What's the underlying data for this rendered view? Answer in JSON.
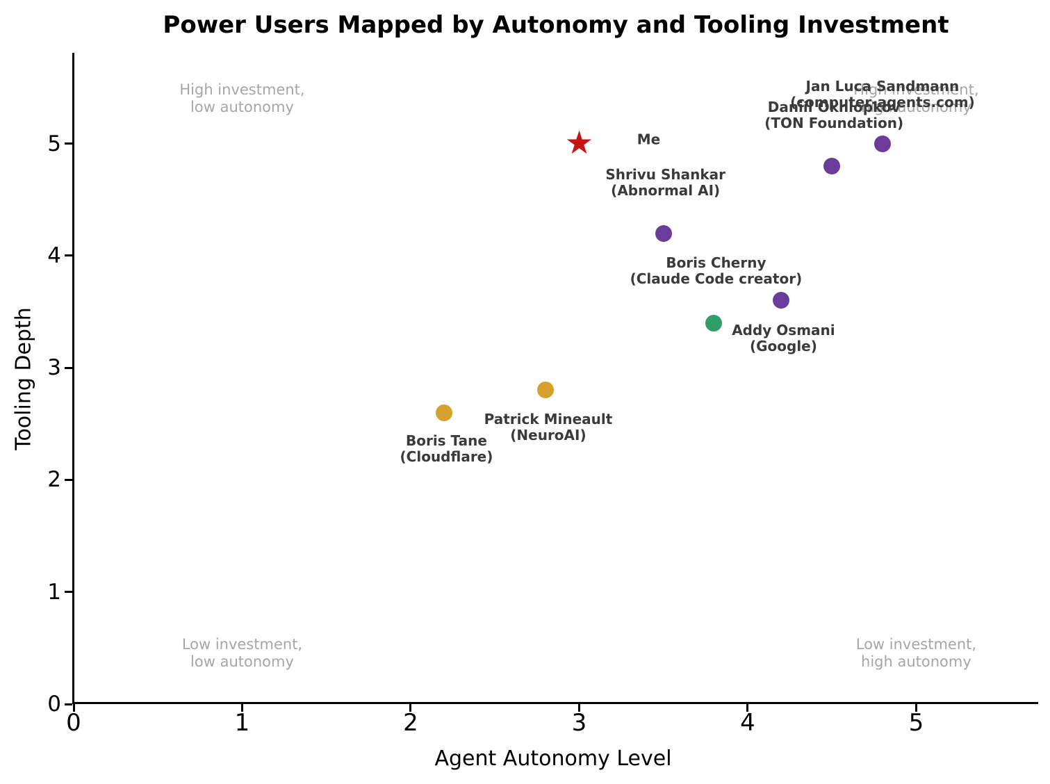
{
  "title": "Power Users Mapped by Autonomy and Tooling Investment",
  "chart_data": {
    "type": "scatter",
    "title": "Power Users Mapped by Autonomy and Tooling Investment",
    "xlabel": "Agent Autonomy Level",
    "ylabel": "Tooling Depth",
    "xlim": [
      0,
      5.72
    ],
    "ylim": [
      0,
      5.81
    ],
    "xticks": [
      0,
      1,
      2,
      3,
      4,
      5
    ],
    "yticks": [
      0,
      1,
      2,
      3,
      4,
      5
    ],
    "grid": false,
    "legend": "none",
    "marker_colors": {
      "purple": "#6a3d9a",
      "green": "#2f9e68",
      "gold": "#d6a02e",
      "red": "#c41414"
    },
    "points": [
      {
        "name": "Me",
        "label_lines": [
          "Me"
        ],
        "x": 3.0,
        "y": 5.0,
        "marker": "star",
        "color": "#c41414",
        "label_offset": [
          100,
          -6
        ]
      },
      {
        "name": "Jan Luca Sandmann",
        "label_lines": [
          "Jan Luca Sandmann",
          "(computer-agents.com)"
        ],
        "x": 4.8,
        "y": 5.0,
        "marker": "circle",
        "color": "#6a3d9a",
        "label_offset": [
          0,
          -71
        ]
      },
      {
        "name": "Daniil Okhlopkov",
        "label_lines": [
          "Daniil Okhlopkov",
          "(TON Foundation)"
        ],
        "x": 4.5,
        "y": 4.8,
        "marker": "circle",
        "color": "#6a3d9a",
        "label_offset": [
          3,
          -73
        ]
      },
      {
        "name": "Shrivu Shankar",
        "label_lines": [
          "Shrivu Shankar",
          "(Abnormal AI)"
        ],
        "x": 3.5,
        "y": 4.2,
        "marker": "circle",
        "color": "#6a3d9a",
        "label_offset": [
          3,
          -73
        ]
      },
      {
        "name": "Boris Cherny",
        "label_lines": [
          "Boris Cherny",
          "(Claude Code creator)"
        ],
        "x": 4.2,
        "y": 3.6,
        "marker": "circle",
        "color": "#6a3d9a",
        "label_offset": [
          -94,
          -42
        ]
      },
      {
        "name": "Addy Osmani",
        "label_lines": [
          "Addy Osmani",
          "(Google)"
        ],
        "x": 3.8,
        "y": 3.4,
        "marker": "circle",
        "color": "#2f9e68",
        "label_offset": [
          100,
          22
        ]
      },
      {
        "name": "Patrick Mineault",
        "label_lines": [
          "Patrick Mineault",
          "(NeuroAI)"
        ],
        "x": 2.8,
        "y": 2.8,
        "marker": "circle",
        "color": "#d6a02e",
        "label_offset": [
          4,
          54
        ]
      },
      {
        "name": "Boris Tane",
        "label_lines": [
          "Boris Tane",
          "(Cloudflare)"
        ],
        "x": 2.2,
        "y": 2.6,
        "marker": "circle",
        "color": "#d6a02e",
        "label_offset": [
          3,
          52
        ]
      }
    ],
    "quadrant_labels": [
      {
        "lines": [
          "High investment,",
          "low autonomy"
        ],
        "x": 1.0,
        "y": 5.4
      },
      {
        "lines": [
          "High investment,",
          "high autonomy"
        ],
        "x": 5.0,
        "y": 5.4
      },
      {
        "lines": [
          "Low investment,",
          "low autonomy"
        ],
        "x": 1.0,
        "y": 0.45
      },
      {
        "lines": [
          "Low investment,",
          "high autonomy"
        ],
        "x": 5.0,
        "y": 0.45
      }
    ]
  }
}
